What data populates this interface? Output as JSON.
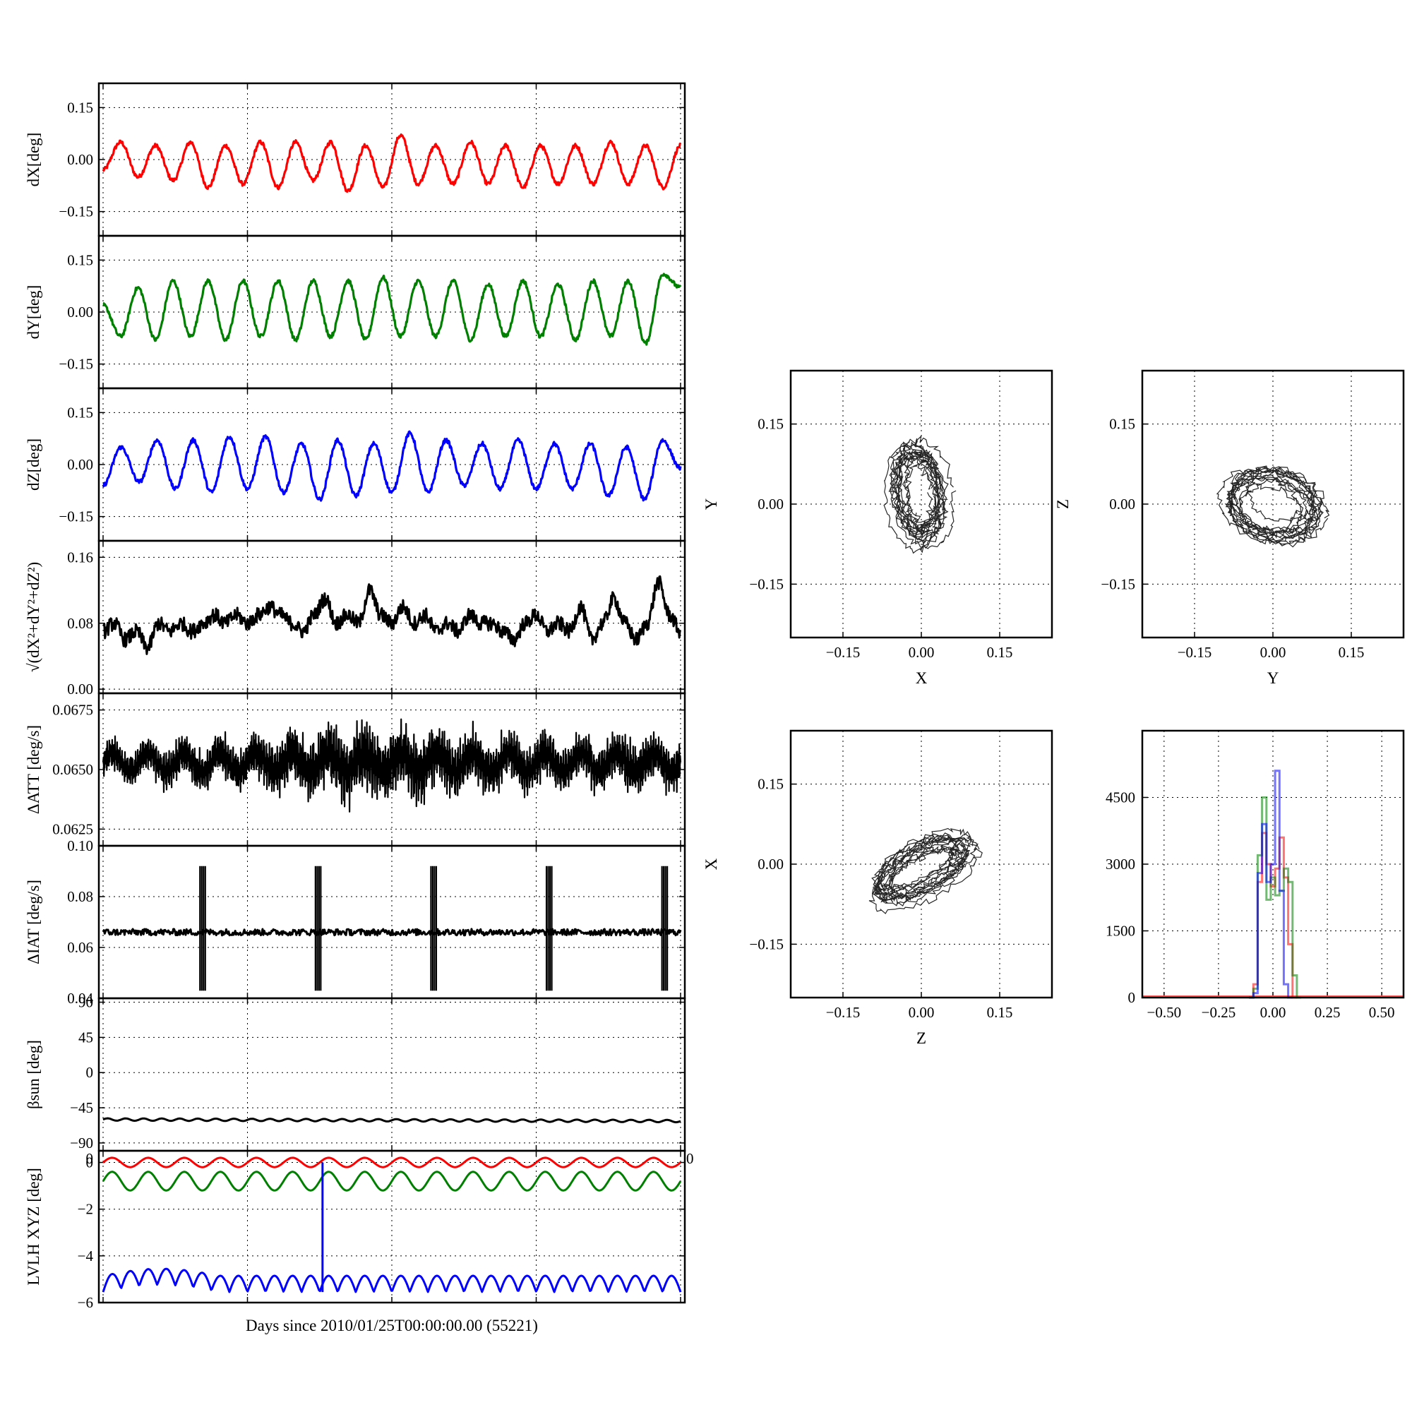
{
  "chart_data": [
    {
      "type": "line",
      "ylabel": "dX[deg]",
      "yticks": [
        "0.15",
        "0.00",
        "−0.15"
      ],
      "yticks_values": [
        0.15,
        0.0,
        -0.15
      ],
      "ylim": [
        -0.22,
        0.22
      ],
      "series": [
        {
          "color": "#ff0000",
          "values": [
            -0.03,
            0.05,
            -0.05,
            0.04,
            -0.06,
            0.05,
            -0.08,
            0.04,
            -0.07,
            0.05,
            -0.08,
            0.05,
            -0.06,
            0.05,
            -0.09,
            0.04,
            -0.08,
            0.07,
            -0.07,
            0.04,
            -0.07,
            0.05,
            -0.07,
            0.04,
            -0.08,
            0.04,
            -0.07,
            0.04,
            -0.07,
            0.05,
            -0.07,
            0.04,
            -0.08,
            0.04
          ]
        }
      ]
    },
    {
      "type": "line",
      "ylabel": "dY[deg]",
      "yticks": [
        "0.15",
        "0.00",
        "−0.15"
      ],
      "yticks_values": [
        0.15,
        0.0,
        -0.15
      ],
      "ylim": [
        -0.22,
        0.22
      ],
      "series": [
        {
          "color": "#008000",
          "values": [
            0.02,
            -0.07,
            0.07,
            -0.08,
            0.09,
            -0.07,
            0.09,
            -0.08,
            0.09,
            -0.07,
            0.09,
            -0.08,
            0.09,
            -0.07,
            0.09,
            -0.08,
            0.1,
            -0.07,
            0.09,
            -0.07,
            0.09,
            -0.08,
            0.08,
            -0.07,
            0.09,
            -0.07,
            0.08,
            -0.08,
            0.09,
            -0.07,
            0.09,
            -0.09,
            0.11,
            0.07
          ]
        }
      ]
    },
    {
      "type": "line",
      "ylabel": "dZ[deg]",
      "yticks": [
        "0.15",
        "0.00",
        "−0.15"
      ],
      "yticks_values": [
        0.15,
        0.0,
        -0.15
      ],
      "ylim": [
        -0.22,
        0.22
      ],
      "series": [
        {
          "color": "#0000ff",
          "values": [
            -0.06,
            0.05,
            -0.05,
            0.07,
            -0.07,
            0.07,
            -0.08,
            0.08,
            -0.07,
            0.08,
            -0.08,
            0.06,
            -0.1,
            0.07,
            -0.09,
            0.06,
            -0.08,
            0.09,
            -0.08,
            0.07,
            -0.06,
            0.06,
            -0.07,
            0.07,
            -0.07,
            0.06,
            -0.07,
            0.06,
            -0.09,
            0.05,
            -0.1,
            0.07,
            -0.01
          ]
        }
      ]
    },
    {
      "type": "line",
      "ylabel": "√(dX²+dY²+dZ²)",
      "yticks": [
        "0.16",
        "0.08",
        "0.00"
      ],
      "yticks_values": [
        0.16,
        0.08,
        0.0
      ],
      "ylim": [
        -0.005,
        0.18
      ],
      "series": [
        {
          "color": "#000000",
          "values": [
            0.07,
            0.08,
            0.06,
            0.07,
            0.05,
            0.08,
            0.07,
            0.08,
            0.07,
            0.08,
            0.09,
            0.08,
            0.09,
            0.08,
            0.09,
            0.1,
            0.09,
            0.08,
            0.07,
            0.09,
            0.11,
            0.08,
            0.09,
            0.08,
            0.12,
            0.09,
            0.08,
            0.1,
            0.08,
            0.09,
            0.07,
            0.08,
            0.07,
            0.09,
            0.08,
            0.08,
            0.07,
            0.06,
            0.08,
            0.09,
            0.07,
            0.08,
            0.07,
            0.1,
            0.06,
            0.08,
            0.11,
            0.08,
            0.06,
            0.08,
            0.13,
            0.09,
            0.07
          ]
        }
      ]
    },
    {
      "type": "line",
      "ylabel": "ΔATT [deg/s]",
      "yticks": [
        "0.0675",
        "0.0650",
        "0.0625"
      ],
      "yticks_values": [
        0.0675,
        0.065,
        0.0625
      ],
      "ylim": [
        0.0618,
        0.0682
      ],
      "series": [
        {
          "color": "#000000",
          "mean": 0.0653,
          "amp_env": [
            0.0008,
            0.0009,
            0.001,
            0.0011,
            0.0012,
            0.0014,
            0.0016,
            0.0017,
            0.0017,
            0.0016,
            0.0014,
            0.0013,
            0.0012,
            0.0011,
            0.0012,
            0.0013,
            0.0011
          ]
        }
      ]
    },
    {
      "type": "line",
      "ylabel": "ΔIAT [deg/s]",
      "yticks": [
        "0.10",
        "0.08",
        "0.06",
        "0.04"
      ],
      "yticks_values": [
        0.1,
        0.08,
        0.06,
        0.04
      ],
      "ylim": [
        0.04,
        0.1
      ],
      "series": [
        {
          "color": "#000000",
          "baseline": 0.066,
          "spike_high": 0.092,
          "spike_low": 0.043,
          "spike_positions": [
            0.18,
            0.38,
            0.58,
            0.78,
            0.98
          ]
        }
      ]
    },
    {
      "type": "line",
      "ylabel": "βsun [deg]",
      "yticks": [
        "90",
        "45",
        "0",
        "−45",
        "−90"
      ],
      "yticks_values": [
        90,
        45,
        0,
        -45,
        -90
      ],
      "ylim": [
        -100,
        95
      ],
      "series": [
        {
          "color": "#000000",
          "mean": -60,
          "amp": 1.5
        }
      ]
    },
    {
      "type": "line",
      "ylabel": "LVLH XYZ [deg]",
      "xlabel": "Days since 2010/01/25T00:00:00.00 (55221)",
      "yticks": [
        "0",
        "−2",
        "−4",
        "−6"
      ],
      "yticks_values": [
        0,
        -2,
        -4,
        -6
      ],
      "ylim": [
        -6,
        0.5
      ],
      "overflow_tick": "0",
      "series": [
        {
          "color": "#ff0000",
          "mean": 0.0,
          "amp": 0.2
        },
        {
          "color": "#008000",
          "mean": -0.8,
          "amp": 0.4
        },
        {
          "color": "#0000ff",
          "mean": -5.2,
          "amp": 0.35,
          "spike_at": 0.38,
          "spike_top": 0.0
        }
      ]
    },
    {
      "type": "scatter",
      "xlabel": "X",
      "ylabel": "Y",
      "xticks": [
        "−0.15",
        "0.00",
        "0.15"
      ],
      "yticks": [
        "0.15",
        "0.00",
        "−0.15"
      ],
      "xlim": [
        -0.25,
        0.25
      ],
      "ylim": [
        -0.25,
        0.25
      ],
      "series": [
        {
          "color": "#000000",
          "cx": -0.005,
          "cy": 0.02,
          "rx": 0.045,
          "ry": 0.09,
          "tilt_deg": 8
        }
      ]
    },
    {
      "type": "scatter",
      "xlabel": "Y",
      "ylabel": "Z",
      "xticks": [
        "−0.15",
        "0.00",
        "0.15"
      ],
      "yticks": [
        "0.15",
        "0.00",
        "−0.15"
      ],
      "xlim": [
        -0.25,
        0.25
      ],
      "ylim": [
        -0.25,
        0.25
      ],
      "series": [
        {
          "color": "#000000",
          "cx": 0.0,
          "cy": 0.0,
          "rx": 0.085,
          "ry": 0.06,
          "tilt_deg": -15
        }
      ]
    },
    {
      "type": "scatter",
      "xlabel": "Z",
      "ylabel": "X",
      "xticks": [
        "−0.15",
        "0.00",
        "0.15"
      ],
      "yticks": [
        "0.15",
        "0.00",
        "−0.15"
      ],
      "xlim": [
        -0.25,
        0.25
      ],
      "ylim": [
        -0.25,
        0.25
      ],
      "series": [
        {
          "color": "#000000",
          "cx": 0.0,
          "cy": -0.01,
          "rx": 0.1,
          "ry": 0.04,
          "tilt_deg": 28
        }
      ]
    },
    {
      "type": "bar",
      "xticks": [
        "−0.50",
        "−0.25",
        "0.00",
        "0.25",
        "0.50"
      ],
      "xticks_values": [
        -0.5,
        -0.25,
        0.0,
        0.25,
        0.5
      ],
      "yticks": [
        "4500",
        "3000",
        "1500",
        "0"
      ],
      "yticks_values": [
        4500,
        3000,
        1500,
        0
      ],
      "xlim": [
        -0.6,
        0.6
      ],
      "ylim": [
        0,
        6000
      ],
      "series": [
        {
          "color": "#ff0000",
          "x": [
            -0.1,
            -0.08,
            -0.06,
            -0.04,
            -0.02,
            0.0,
            0.02,
            0.04,
            0.06,
            0.08,
            0.1
          ],
          "values": [
            0,
            300,
            2600,
            3700,
            3000,
            2500,
            2900,
            3600,
            2700,
            1200,
            0
          ]
        },
        {
          "color": "#008000",
          "x": [
            -0.1,
            -0.08,
            -0.06,
            -0.04,
            -0.02,
            0.0,
            0.02,
            0.04,
            0.06,
            0.08,
            0.1,
            0.12
          ],
          "values": [
            0,
            200,
            3200,
            4500,
            2200,
            2700,
            2300,
            2400,
            2900,
            2600,
            500,
            0
          ]
        },
        {
          "color": "#0000ff",
          "x": [
            -0.1,
            -0.08,
            -0.06,
            -0.04,
            -0.02,
            0.0,
            0.02,
            0.04,
            0.06,
            0.08
          ],
          "values": [
            0,
            100,
            2800,
            3900,
            2600,
            3000,
            5100,
            2400,
            300,
            0
          ]
        }
      ]
    }
  ]
}
